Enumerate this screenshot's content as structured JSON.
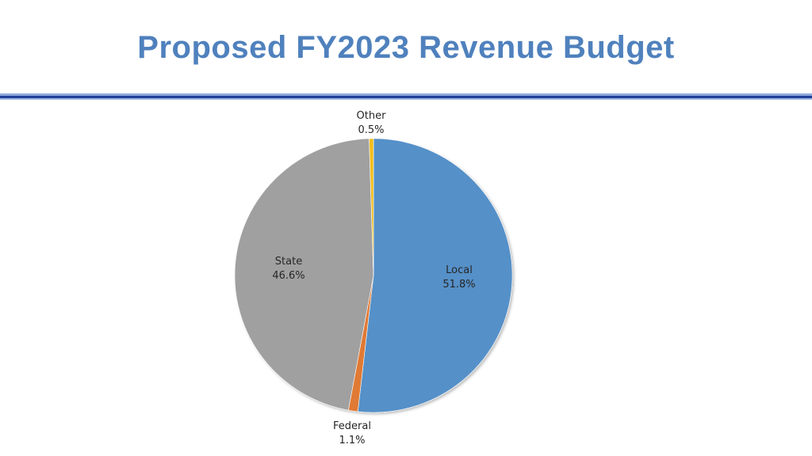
{
  "slide": {
    "title": "Proposed FY2023 Revenue Budget"
  },
  "chart_data": {
    "type": "pie",
    "title": "",
    "slices": [
      {
        "label": "Local",
        "value": 51.8,
        "value_label": "51.8%",
        "color": "#5590C8"
      },
      {
        "label": "Federal",
        "value": 1.1,
        "value_label": "1.1%",
        "color": "#E07A35"
      },
      {
        "label": "State",
        "value": 46.6,
        "value_label": "46.6%",
        "color": "#A0A0A0"
      },
      {
        "label": "Other",
        "value": 0.5,
        "value_label": "0.5%",
        "color": "#F2BE1D"
      }
    ],
    "start_angle": "12 o'clock",
    "direction": "clockwise",
    "legend": "none",
    "labels": "category name and percentage"
  }
}
